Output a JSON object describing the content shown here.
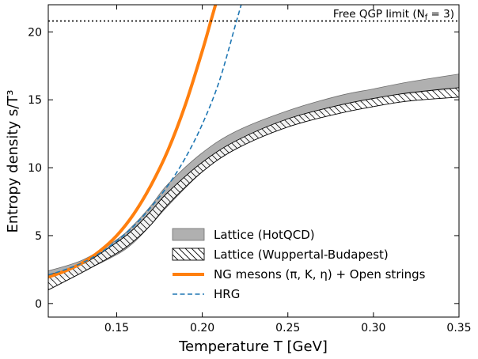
{
  "chart_data": {
    "type": "line",
    "xlabel": "Temperature T [GeV]",
    "ylabel": "Entropy density s/T³",
    "xlim": [
      0.11,
      0.35
    ],
    "ylim": [
      -1,
      22
    ],
    "xticks": [
      0.15,
      0.2,
      0.25,
      0.3,
      0.35
    ],
    "xtick_labels": [
      "0.15",
      "0.20",
      "0.25",
      "0.30",
      "0.35"
    ],
    "yticks": [
      0,
      5,
      10,
      15,
      20
    ],
    "ytick_labels": [
      "0",
      "5",
      "10",
      "15",
      "20"
    ],
    "grid": false,
    "legend_position": "bottom-right",
    "reference_line": {
      "y": 20.8,
      "label": "Free QGP limit (N",
      "label_sub": "f",
      "label_tail": " = 3)",
      "color": "#000000"
    },
    "series": [
      {
        "name": "Lattice (HotQCD)",
        "style": "band",
        "color": "#b0b0b0",
        "x": [
          0.11,
          0.13,
          0.15,
          0.16,
          0.17,
          0.18,
          0.2,
          0.22,
          0.25,
          0.28,
          0.3,
          0.32,
          0.35
        ],
        "upper": [
          2.4,
          3.2,
          4.7,
          5.8,
          7.2,
          8.8,
          11.1,
          12.7,
          14.2,
          15.3,
          15.8,
          16.3,
          16.9
        ],
        "lower": [
          1.6,
          2.4,
          3.6,
          4.5,
          5.8,
          7.2,
          9.7,
          11.5,
          13.2,
          14.4,
          15.0,
          15.4,
          15.8
        ]
      },
      {
        "name": "Lattice (Wuppertal-Budapest)",
        "style": "hatched-band",
        "color": "#000000",
        "x": [
          0.11,
          0.13,
          0.15,
          0.16,
          0.17,
          0.18,
          0.2,
          0.22,
          0.25,
          0.28,
          0.3,
          0.32,
          0.35
        ],
        "upper": [
          2.1,
          2.9,
          4.5,
          5.5,
          6.8,
          8.2,
          10.4,
          12.0,
          13.6,
          14.6,
          15.1,
          15.5,
          15.9
        ],
        "lower": [
          1.0,
          2.3,
          3.7,
          4.6,
          5.8,
          7.3,
          9.7,
          11.4,
          13.0,
          14.0,
          14.5,
          14.9,
          15.2
        ]
      },
      {
        "name": "NG mesons (π, K, η) + Open strings",
        "style": "line",
        "color": "#ff7f0e",
        "x": [
          0.11,
          0.12,
          0.13,
          0.14,
          0.15,
          0.16,
          0.17,
          0.18,
          0.19,
          0.2,
          0.205,
          0.21
        ],
        "values": [
          1.95,
          2.4,
          3.0,
          3.85,
          5.0,
          6.6,
          8.7,
          11.3,
          14.6,
          18.6,
          20.8,
          23.0
        ]
      },
      {
        "name": "HRG",
        "style": "dashed",
        "color": "#1f77b4",
        "x": [
          0.11,
          0.12,
          0.13,
          0.14,
          0.15,
          0.16,
          0.17,
          0.18,
          0.19,
          0.2,
          0.21,
          0.22,
          0.225
        ],
        "values": [
          2.1,
          2.5,
          3.0,
          3.7,
          4.6,
          5.7,
          7.1,
          8.7,
          10.7,
          13.2,
          16.4,
          20.8,
          23.0
        ]
      }
    ]
  }
}
